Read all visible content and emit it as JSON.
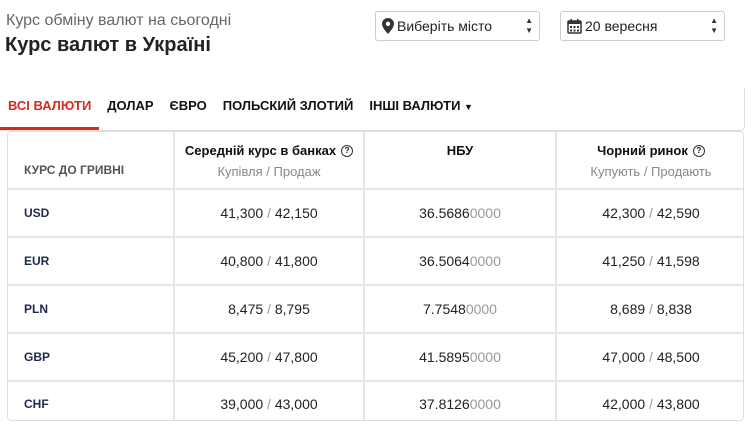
{
  "header": {
    "subtitle": "Курс обміну валют на сьогодні",
    "title": "Курс валют в Україні"
  },
  "city_select": {
    "value": "Виберіть місто",
    "icon": "map-pin-icon"
  },
  "date_select": {
    "value": "20 вересня",
    "icon": "calendar-icon"
  },
  "tabs": [
    {
      "label": "ВСІ ВАЛЮТИ",
      "active": true
    },
    {
      "label": "ДОЛАР"
    },
    {
      "label": "ЄВРО"
    },
    {
      "label": "ПОЛЬСКИЙ ЗЛОТИЙ"
    },
    {
      "label": "ІНШІ ВАЛЮТИ"
    }
  ],
  "accent": "#d52b1e",
  "table": {
    "col0": "КУРС ДО ГРИВНІ",
    "col1": {
      "title": "Середній курс в банках",
      "sub": "Купівля / Продаж"
    },
    "col2": {
      "title": "НБУ"
    },
    "col3": {
      "title": "Чорний ринок",
      "sub": "Купують / Продають"
    },
    "separator": " / ",
    "rows": [
      {
        "code": "USD",
        "bank_buy": "41,300",
        "bank_sell": "42,150",
        "nbu": "36.5686",
        "nbu_zeros": "0000",
        "bm_buy": "42,300",
        "bm_sell": "42,590"
      },
      {
        "code": "EUR",
        "bank_buy": "40,800",
        "bank_sell": "41,800",
        "nbu": "36.5064",
        "nbu_zeros": "0000",
        "bm_buy": "41,250",
        "bm_sell": "41,598"
      },
      {
        "code": "PLN",
        "bank_buy": "8,475",
        "bank_sell": "8,795",
        "nbu": "7.7548",
        "nbu_zeros": "0000",
        "bm_buy": "8,689",
        "bm_sell": "8,838"
      },
      {
        "code": "GBP",
        "bank_buy": "45,200",
        "bank_sell": "47,800",
        "nbu": "41.5895",
        "nbu_zeros": "0000",
        "bm_buy": "47,000",
        "bm_sell": "48,500"
      },
      {
        "code": "CHF",
        "bank_buy": "39,000",
        "bank_sell": "43,000",
        "nbu": "37.8126",
        "nbu_zeros": "0000",
        "bm_buy": "42,000",
        "bm_sell": "43,800"
      }
    ]
  }
}
